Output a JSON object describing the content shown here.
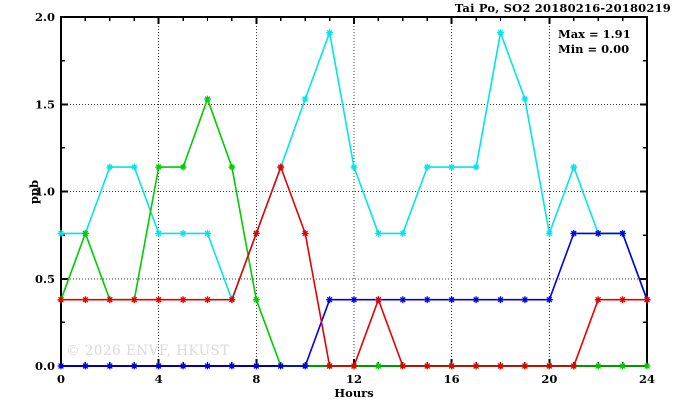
{
  "title": "Tai Po, SO2 20180216-20180219",
  "annotation": {
    "max_label": "Max = 1.91",
    "min_label": "Min = 0.00"
  },
  "watermark": "© 2026 ENVF, HKUST",
  "colors": {
    "cyan_series": "#00e6e6",
    "green_series": "#00cc00",
    "blue_series": "#0000e0",
    "red_series": "#e80000",
    "grid": "#3a3a3a",
    "frame": "#000000",
    "watermark": "#dadada"
  },
  "chart_data": {
    "type": "line",
    "title": "Tai Po, SO2 20180216-20180219",
    "xlabel": "Hours",
    "ylabel": "ppb",
    "xlim": [
      0,
      24
    ],
    "ylim": [
      0,
      2
    ],
    "x_ticks_major": [
      0,
      4,
      8,
      12,
      16,
      20,
      24
    ],
    "x_tick_labels": [
      "0",
      "4",
      "8",
      "12",
      "16",
      "20",
      "24"
    ],
    "x_minor_step": 1,
    "y_ticks_major": [
      0.0,
      0.5,
      1.0,
      1.5,
      2.0
    ],
    "y_tick_labels": [
      "0.0",
      "0.5",
      "1.0",
      "1.5",
      "2.0"
    ],
    "y_minor_step": 0.25,
    "grid": true,
    "legend": "none",
    "stat_max": 1.91,
    "stat_min": 0.0,
    "x": [
      0,
      1,
      2,
      3,
      4,
      5,
      6,
      7,
      8,
      9,
      10,
      11,
      12,
      13,
      14,
      15,
      16,
      17,
      18,
      19,
      20,
      21,
      22,
      23,
      24
    ],
    "series": [
      {
        "name": "cyan",
        "color": "#00e6e6",
        "values": [
          0.76,
          0.76,
          1.14,
          1.14,
          0.76,
          0.76,
          0.76,
          0.38,
          0.76,
          1.14,
          1.53,
          1.91,
          1.14,
          0.76,
          0.76,
          1.14,
          1.14,
          1.14,
          1.91,
          1.53,
          0.76,
          1.14,
          0.76,
          0.76,
          0.38
        ]
      },
      {
        "name": "green",
        "color": "#00cc00",
        "values": [
          0.38,
          0.76,
          0.38,
          0.38,
          1.14,
          1.14,
          1.53,
          1.14,
          0.38,
          0.0,
          0.0,
          0.0,
          0.0,
          0.0,
          0.0,
          0.0,
          0.0,
          0.0,
          0.0,
          0.0,
          0.0,
          0.0,
          0.0,
          0.0,
          0.0
        ]
      },
      {
        "name": "blue",
        "color": "#0000e0",
        "values": [
          0.0,
          0.0,
          0.0,
          0.0,
          0.0,
          0.0,
          0.0,
          0.0,
          0.0,
          0.0,
          0.0,
          0.38,
          0.38,
          0.38,
          0.38,
          0.38,
          0.38,
          0.38,
          0.38,
          0.38,
          0.38,
          0.76,
          0.76,
          0.76,
          0.38
        ]
      },
      {
        "name": "red",
        "color": "#e80000",
        "values": [
          0.38,
          0.38,
          0.38,
          0.38,
          0.38,
          0.38,
          0.38,
          0.38,
          0.76,
          1.14,
          0.76,
          0.0,
          0.0,
          0.38,
          0.0,
          0.0,
          0.0,
          0.0,
          0.0,
          0.0,
          0.0,
          0.0,
          0.38,
          0.38,
          0.38
        ]
      }
    ]
  }
}
